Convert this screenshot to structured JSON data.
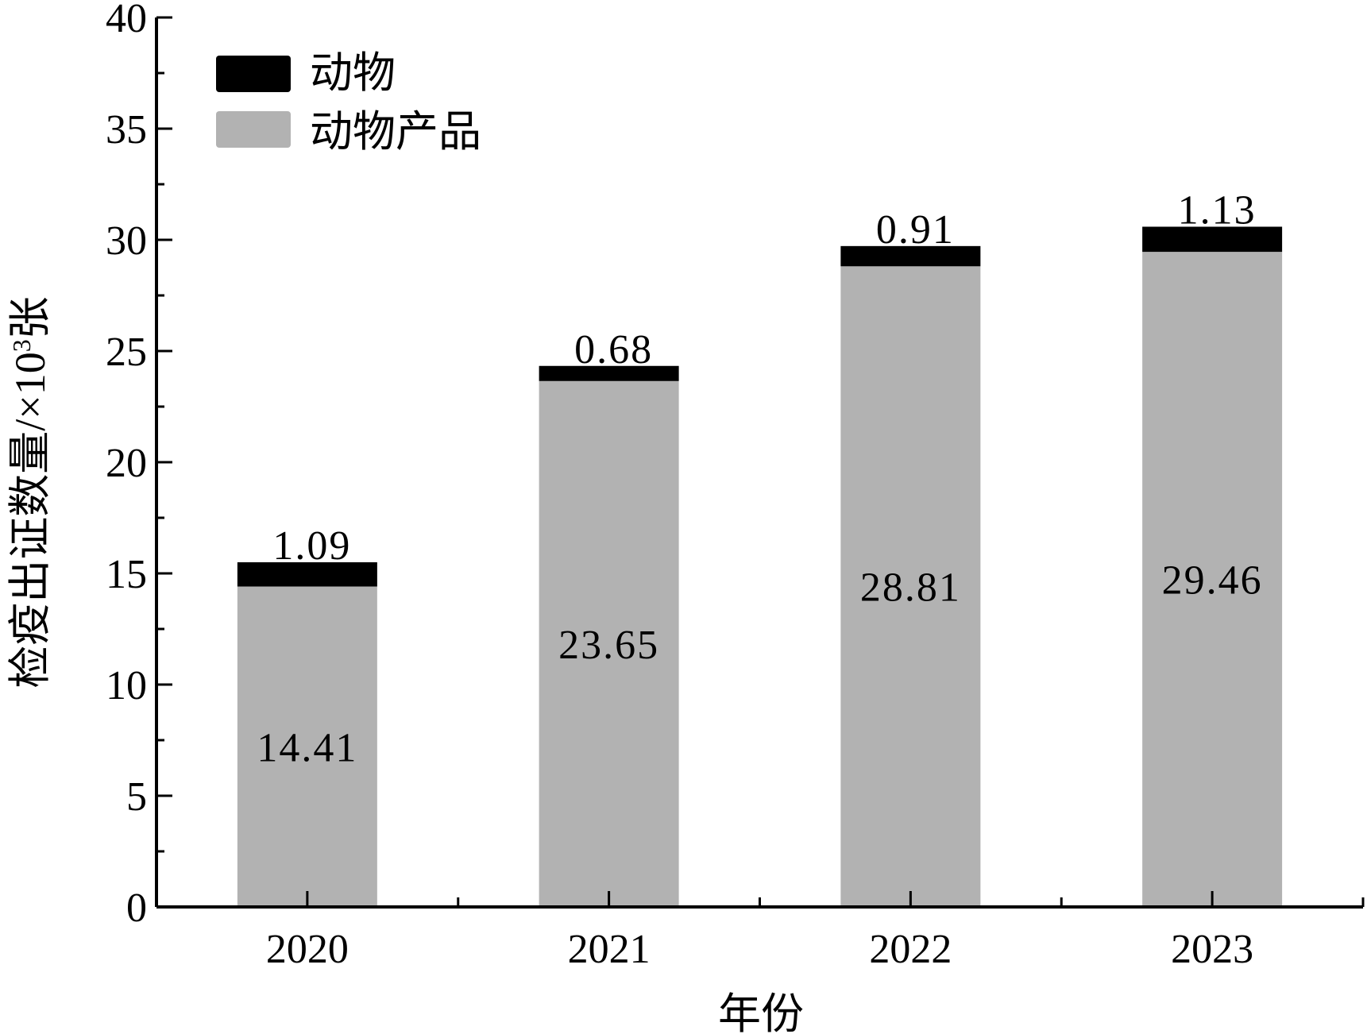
{
  "chart_data": {
    "type": "bar",
    "stacked": true,
    "categories": [
      "2020",
      "2021",
      "2022",
      "2023"
    ],
    "series": [
      {
        "name": "动物产品",
        "values": [
          14.41,
          23.65,
          28.81,
          29.46
        ],
        "color": "#b2b2b2"
      },
      {
        "name": "动物",
        "values": [
          1.09,
          0.68,
          0.91,
          1.13
        ],
        "color": "#000000"
      }
    ],
    "data_labels": {
      "动物产品": [
        "14.41",
        "23.65",
        "28.81",
        "29.46"
      ],
      "动物": [
        "1.09",
        "0.68",
        "0.91",
        "1.13"
      ]
    },
    "xlabel": "年份",
    "ylabel": "检疫出证数量/×10³张",
    "ylim": [
      0,
      40
    ],
    "yticks": [
      0,
      5,
      10,
      15,
      20,
      25,
      30,
      35,
      40
    ],
    "grid": false,
    "legend": {
      "position": "top-left",
      "entries": [
        {
          "label": "动物",
          "color": "#000000"
        },
        {
          "label": "动物产品",
          "color": "#b2b2b2"
        }
      ]
    }
  }
}
